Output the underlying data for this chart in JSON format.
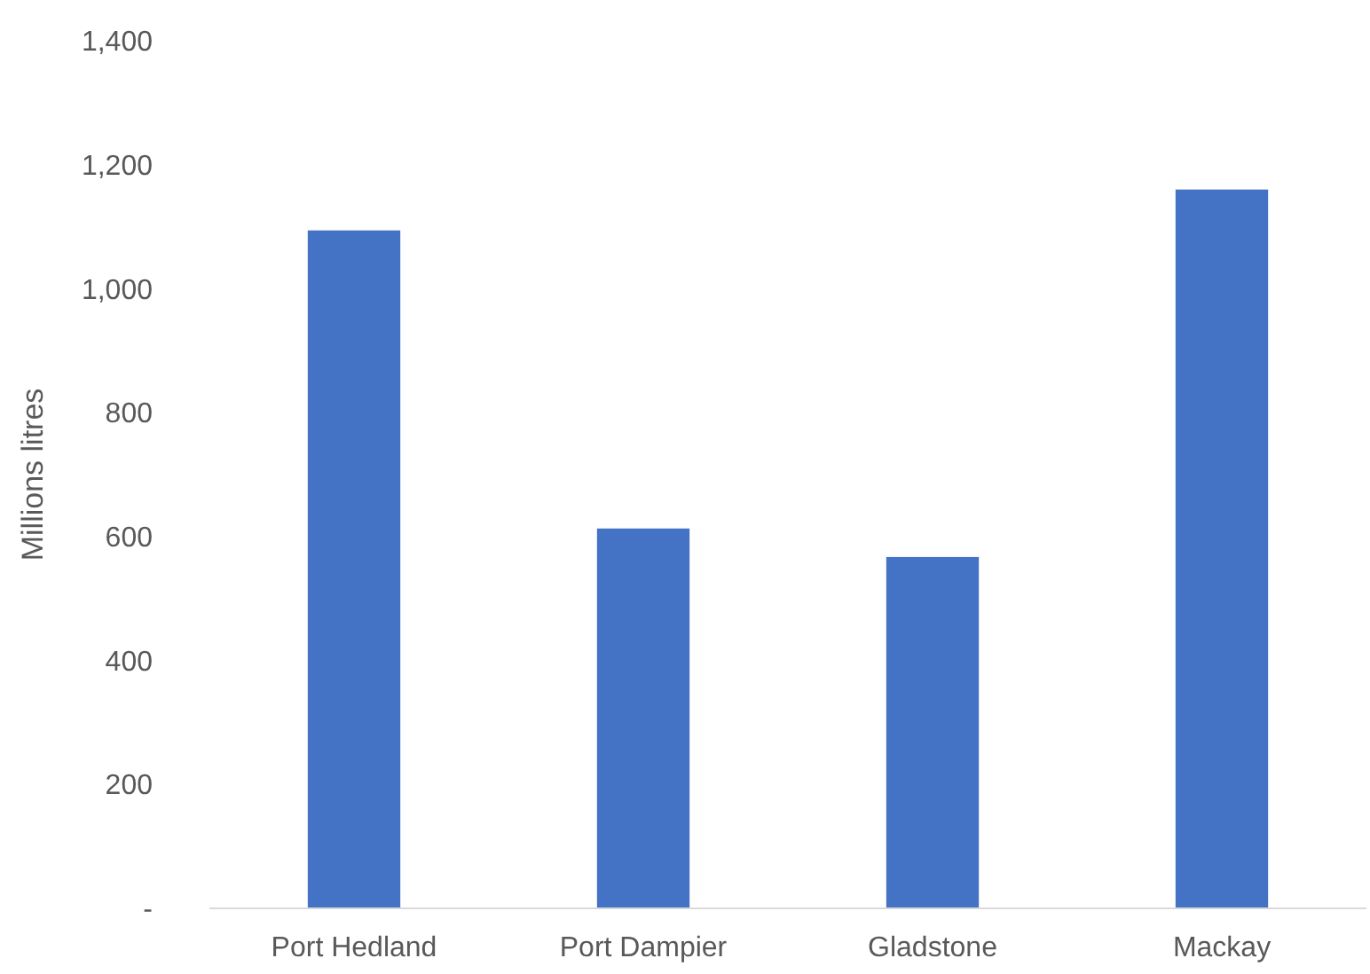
{
  "chart_data": {
    "type": "bar",
    "ylabel": "Millions litres",
    "categories": [
      "Port Hedland",
      "Port Dampier",
      "Gladstone",
      "Mackay"
    ],
    "values": [
      1094,
      613,
      567,
      1160
    ],
    "color": "#4472c4",
    "ylim": [
      0,
      1400
    ],
    "yticks": [
      {
        "value": 0,
        "label": "-"
      },
      {
        "value": 200,
        "label": "200"
      },
      {
        "value": 400,
        "label": "400"
      },
      {
        "value": 600,
        "label": "600"
      },
      {
        "value": 800,
        "label": "800"
      },
      {
        "value": 1000,
        "label": "1,000"
      },
      {
        "value": 1200,
        "label": "1,200"
      },
      {
        "value": 1400,
        "label": "1,400"
      }
    ],
    "grid": false
  }
}
